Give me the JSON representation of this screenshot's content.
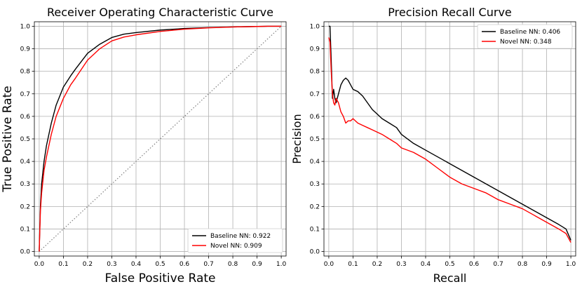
{
  "chart_data": [
    {
      "type": "line",
      "title": "Receiver Operating Characteristic Curve",
      "xlabel": "False Positive Rate",
      "ylabel": "True Positive Rate",
      "xlim": [
        -0.02,
        1.02
      ],
      "ylim": [
        -0.02,
        1.02
      ],
      "xticks": [
        "0.0",
        "0.1",
        "0.2",
        "0.3",
        "0.4",
        "0.5",
        "0.6",
        "0.7",
        "0.8",
        "0.9",
        "1.0"
      ],
      "yticks": [
        "0.0",
        "0.1",
        "0.2",
        "0.3",
        "0.4",
        "0.5",
        "0.6",
        "0.7",
        "0.8",
        "0.9",
        "1.0"
      ],
      "grid": true,
      "legend_position": "lower-right",
      "diagonal_reference": {
        "x": [
          0,
          1
        ],
        "y": [
          0,
          1
        ],
        "color": "#808080",
        "style": "dotted"
      },
      "series": [
        {
          "name": "Baseline NN: 0.922",
          "color": "#000000",
          "x": [
            0,
            0.005,
            0.01,
            0.02,
            0.03,
            0.05,
            0.07,
            0.1,
            0.13,
            0.15,
            0.2,
            0.25,
            0.3,
            0.35,
            0.4,
            0.5,
            0.6,
            0.7,
            0.8,
            0.9,
            0.95,
            1.0
          ],
          "y": [
            0,
            0.2,
            0.3,
            0.4,
            0.47,
            0.57,
            0.65,
            0.73,
            0.78,
            0.81,
            0.88,
            0.92,
            0.95,
            0.965,
            0.972,
            0.983,
            0.99,
            0.994,
            0.997,
            0.999,
            1.0,
            1.0
          ]
        },
        {
          "name": "Novel NN: 0.909",
          "color": "#ff0000",
          "x": [
            0,
            0.005,
            0.01,
            0.02,
            0.03,
            0.05,
            0.07,
            0.1,
            0.13,
            0.15,
            0.2,
            0.25,
            0.3,
            0.35,
            0.4,
            0.5,
            0.6,
            0.7,
            0.8,
            0.9,
            0.95,
            1.0
          ],
          "y": [
            0,
            0.18,
            0.26,
            0.36,
            0.42,
            0.52,
            0.6,
            0.68,
            0.74,
            0.77,
            0.85,
            0.9,
            0.935,
            0.952,
            0.962,
            0.977,
            0.987,
            0.993,
            0.997,
            0.999,
            1.0,
            1.0
          ]
        }
      ]
    },
    {
      "type": "line",
      "title": "Precision Recall Curve",
      "xlabel": "Recall",
      "ylabel": "Precision",
      "xlim": [
        -0.02,
        1.02
      ],
      "ylim": [
        -0.02,
        1.02
      ],
      "xticks": [
        "0.0",
        "0.1",
        "0.2",
        "0.3",
        "0.4",
        "0.5",
        "0.6",
        "0.7",
        "0.8",
        "0.9",
        "1.0"
      ],
      "yticks": [
        "0.0",
        "0.1",
        "0.2",
        "0.3",
        "0.4",
        "0.5",
        "0.6",
        "0.7",
        "0.8",
        "0.9",
        "1.0"
      ],
      "grid": true,
      "legend_position": "upper-right",
      "series": [
        {
          "name": "Baseline NN: 0.406",
          "color": "#000000",
          "x": [
            0.0,
            0.005,
            0.01,
            0.015,
            0.02,
            0.025,
            0.03,
            0.04,
            0.05,
            0.06,
            0.07,
            0.08,
            0.09,
            0.1,
            0.12,
            0.14,
            0.16,
            0.18,
            0.2,
            0.22,
            0.25,
            0.28,
            0.3,
            0.35,
            0.4,
            0.45,
            0.5,
            0.55,
            0.6,
            0.65,
            0.7,
            0.75,
            0.8,
            0.85,
            0.9,
            0.95,
            0.98,
            1.0
          ],
          "y": [
            1.0,
            1.0,
            0.85,
            0.68,
            0.72,
            0.68,
            0.66,
            0.7,
            0.74,
            0.76,
            0.77,
            0.76,
            0.74,
            0.72,
            0.71,
            0.69,
            0.66,
            0.63,
            0.61,
            0.59,
            0.57,
            0.55,
            0.52,
            0.48,
            0.45,
            0.42,
            0.39,
            0.36,
            0.33,
            0.3,
            0.27,
            0.24,
            0.21,
            0.18,
            0.15,
            0.12,
            0.1,
            0.05
          ]
        },
        {
          "name": "Novel NN: 0.348",
          "color": "#ff0000",
          "x": [
            0.0,
            0.005,
            0.01,
            0.015,
            0.02,
            0.025,
            0.03,
            0.04,
            0.05,
            0.06,
            0.07,
            0.08,
            0.09,
            0.1,
            0.12,
            0.14,
            0.16,
            0.18,
            0.2,
            0.22,
            0.25,
            0.28,
            0.3,
            0.35,
            0.4,
            0.45,
            0.5,
            0.55,
            0.6,
            0.65,
            0.7,
            0.75,
            0.8,
            0.85,
            0.9,
            0.95,
            0.98,
            1.0
          ],
          "y": [
            0.95,
            0.93,
            0.8,
            0.7,
            0.66,
            0.65,
            0.68,
            0.66,
            0.62,
            0.6,
            0.57,
            0.58,
            0.58,
            0.59,
            0.57,
            0.56,
            0.55,
            0.54,
            0.53,
            0.52,
            0.5,
            0.48,
            0.46,
            0.44,
            0.41,
            0.37,
            0.33,
            0.3,
            0.28,
            0.26,
            0.23,
            0.21,
            0.19,
            0.16,
            0.13,
            0.1,
            0.08,
            0.04
          ]
        }
      ]
    }
  ]
}
